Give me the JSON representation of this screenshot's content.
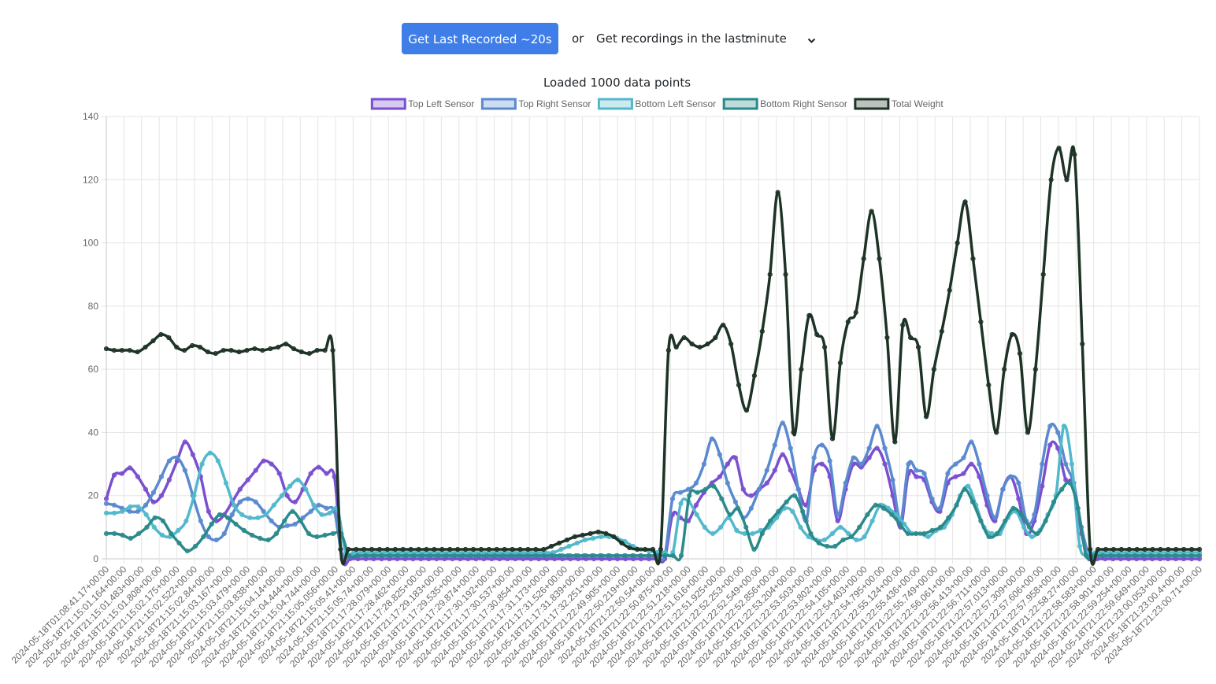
{
  "controls": {
    "fetch_button_label": "Get Last Recorded ~20s",
    "or_label": "or",
    "range_label": "Get recordings in the last:",
    "range_select_value": "minute"
  },
  "status": {
    "loaded_text": "Loaded 1000 data points"
  },
  "chart_data": {
    "type": "line",
    "ylim": [
      0,
      140
    ],
    "yticks": [
      0,
      20,
      40,
      60,
      80,
      100,
      120,
      140
    ],
    "grid": true,
    "legend_position": "top",
    "x_tick_labels": [
      "2024-05-18T01:08:41.17+00:00",
      "2024-05-18T21:15:01.164+00:00",
      "2024-05-18T21:15:01.483+00:00",
      "2024-05-18T21:15:01.808+00:00",
      "2024-05-18T21:15:02.175+00:00",
      "2024-05-18T21:15:02.522+00:00",
      "2024-05-18T21:15:02.84+00:00",
      "2024-05-18T21:15:03.167+00:00",
      "2024-05-18T21:15:03.479+00:00",
      "2024-05-18T21:15:03.838+00:00",
      "2024-05-18T21:15:04.14+00:00",
      "2024-05-18T21:15:04.444+00:00",
      "2024-05-18T21:15:04.744+00:00",
      "2024-05-18T21:15:05.056+00:00",
      "2024-05-18T21:15:05.41+00:00",
      "2024-05-18T21:15:05.74+00:00",
      "2024-05-18T21:17:28.079+00:00",
      "2024-05-18T21:17:28.462+00:00",
      "2024-05-18T21:17:28.825+00:00",
      "2024-05-18T21:17:29.183+00:00",
      "2024-05-18T21:17:29.535+00:00",
      "2024-05-18T21:17:29.874+00:00",
      "2024-05-18T21:17:30.192+00:00",
      "2024-05-18T21:17:30.537+00:00",
      "2024-05-18T21:17:30.854+00:00",
      "2024-05-18T21:17:31.173+00:00",
      "2024-05-18T21:17:31.526+00:00",
      "2024-05-18T21:17:31.839+00:00",
      "2024-05-18T21:17:32.251+00:00",
      "2024-05-18T21:22:49.905+00:00",
      "2024-05-18T21:22:50.219+00:00",
      "2024-05-18T21:22:50.54+00:00",
      "2024-05-18T21:22:50.875+00:00",
      "2024-05-18T21:22:51.218+00:00",
      "2024-05-18T21:22:51.616+00:00",
      "2024-05-18T21:22:51.925+00:00",
      "2024-05-18T21:22:52.253+00:00",
      "2024-05-18T21:22:52.549+00:00",
      "2024-05-18T21:22:52.856+00:00",
      "2024-05-18T21:22:53.204+00:00",
      "2024-05-18T21:22:53.503+00:00",
      "2024-05-18T21:22:53.802+00:00",
      "2024-05-18T21:22:54.105+00:00",
      "2024-05-18T21:22:54.403+00:00",
      "2024-05-18T21:22:54.795+00:00",
      "2024-05-18T21:22:55.124+00:00",
      "2024-05-18T21:22:55.436+00:00",
      "2024-05-18T21:22:55.749+00:00",
      "2024-05-18T21:22:56.061+00:00",
      "2024-05-18T21:22:56.413+00:00",
      "2024-05-18T21:22:56.711+00:00",
      "2024-05-18T21:22:57.013+00:00",
      "2024-05-18T21:22:57.309+00:00",
      "2024-05-18T21:22:57.606+00:00",
      "2024-05-18T21:22:57.958+00:00",
      "2024-05-18T21:22:58.27+00:00",
      "2024-05-18T21:22:58.583+00:00",
      "2024-05-18T21:22:58.901+00:00",
      "2024-05-18T21:22:59.254+00:00",
      "2024-05-18T21:22:59.649+00:00",
      "2024-05-18T21:23:00.053+00:00",
      "2024-05-18T21:23:00.4+00:00",
      "2024-05-18T21:23:00.71+00:00"
    ],
    "series": [
      {
        "name": "Top Left Sensor",
        "color": "#7a4fd0",
        "values": [
          19,
          26.5,
          27,
          28.8,
          26,
          22,
          18,
          20,
          25,
          31,
          37,
          33,
          26,
          15,
          12,
          14,
          18,
          22,
          25,
          28,
          31,
          30,
          27,
          20,
          18,
          22,
          27,
          29,
          27,
          26,
          0,
          0,
          0,
          0,
          0,
          0,
          0,
          0,
          0,
          0,
          0,
          0,
          0,
          0,
          0,
          0,
          0,
          0,
          0,
          0,
          0,
          0,
          0,
          0,
          0,
          0,
          0,
          0,
          0,
          0,
          0,
          0,
          0,
          0,
          0,
          0,
          0,
          0,
          0,
          0,
          0,
          0,
          14,
          13,
          12,
          17,
          21,
          24,
          26,
          30,
          32,
          22,
          20,
          22,
          24,
          28,
          33,
          28,
          22,
          17,
          28,
          30,
          26,
          12,
          22,
          30,
          29,
          32,
          35,
          30,
          20,
          10,
          27,
          26,
          25,
          18,
          15,
          24,
          26,
          27,
          30,
          26,
          17,
          12,
          22,
          26,
          19,
          8,
          12,
          23,
          36,
          35,
          25,
          24,
          8,
          0,
          0,
          0,
          0,
          0,
          0,
          0,
          0,
          0,
          0,
          0,
          0,
          0,
          0,
          0
        ]
      },
      {
        "name": "Top Right Sensor",
        "color": "#5a8ace",
        "values": [
          17.5,
          17,
          16,
          15,
          15,
          17,
          21,
          26,
          31,
          32,
          28,
          20,
          12,
          7,
          6,
          8,
          14,
          18,
          19,
          18,
          15,
          12,
          10,
          10.5,
          11,
          13,
          15,
          17,
          16,
          15,
          1,
          1,
          1,
          1,
          1,
          1,
          1,
          1,
          1,
          1,
          1,
          1,
          1,
          1,
          1,
          1,
          1,
          1,
          1,
          1,
          1,
          1,
          1,
          1,
          1,
          1,
          1,
          1,
          1,
          1,
          1,
          1,
          1,
          1,
          1,
          1,
          1,
          1,
          1,
          1,
          1,
          1,
          19,
          21,
          22,
          24,
          30,
          38,
          33,
          24,
          18,
          13,
          16,
          22,
          28,
          36,
          43,
          35,
          22,
          12,
          32,
          36,
          31,
          14,
          24,
          32,
          30,
          35,
          42,
          35,
          25,
          12,
          30,
          28,
          27,
          19,
          16,
          27,
          30,
          32,
          37,
          30,
          20,
          13,
          22,
          26,
          24,
          12,
          14,
          30,
          42,
          40,
          30,
          24,
          10,
          1,
          1,
          1,
          1,
          1,
          1,
          1,
          1,
          1,
          1,
          1,
          1,
          1,
          1,
          1
        ]
      },
      {
        "name": "Bottom Left Sensor",
        "color": "#52b8cc",
        "values": [
          14.5,
          14.5,
          15,
          16.5,
          16.5,
          14,
          10,
          7.5,
          7,
          9,
          12,
          20,
          30,
          33.5,
          31,
          24,
          17,
          14,
          13,
          13,
          14,
          17,
          20,
          23,
          25,
          22,
          17,
          14,
          14.5,
          15.5,
          2,
          2,
          2,
          2,
          2,
          2,
          2,
          2,
          2,
          2,
          2,
          2,
          2,
          2,
          2,
          2,
          2,
          2,
          2,
          2,
          2,
          2,
          2,
          2,
          2,
          2,
          2,
          3,
          4,
          5,
          6,
          6.5,
          7,
          7,
          6.5,
          5.5,
          4,
          3,
          2.5,
          2,
          2,
          2,
          17.5,
          18,
          14,
          10,
          8,
          10,
          13,
          9,
          8,
          8,
          9,
          10,
          13,
          16,
          15,
          10,
          7,
          6,
          6,
          8,
          10,
          8,
          6,
          7,
          12,
          17,
          16,
          14,
          11,
          8,
          8,
          7,
          9,
          10,
          14,
          20,
          23,
          17,
          10,
          8,
          8,
          13,
          15,
          10,
          7,
          9,
          14,
          20,
          42,
          30,
          4,
          2,
          2,
          2,
          2,
          2,
          2,
          2,
          2,
          2,
          2,
          2,
          2,
          2,
          2,
          2
        ]
      },
      {
        "name": "Bottom Right Sensor",
        "color": "#2a8a8a",
        "values": [
          8,
          8,
          7.5,
          6.5,
          8,
          10,
          13,
          12,
          8,
          5,
          2.5,
          4,
          7,
          11,
          14,
          13,
          11,
          9,
          7.5,
          6.5,
          6,
          8,
          12,
          15,
          12,
          8,
          7,
          7.5,
          8,
          8,
          1,
          1,
          1,
          1,
          1,
          1,
          1,
          1,
          1,
          1,
          1,
          1,
          1,
          1,
          1,
          1,
          1,
          1,
          1,
          1,
          1,
          1,
          1,
          1,
          1,
          1,
          1,
          1,
          1,
          1,
          1,
          1,
          1,
          1,
          1,
          1,
          1,
          1,
          1,
          1,
          1,
          1,
          20,
          21,
          22,
          23,
          19,
          14,
          16,
          10,
          3,
          8,
          12,
          15,
          18,
          20,
          15,
          8,
          5,
          4,
          4,
          6,
          7,
          10,
          14,
          17,
          16,
          14,
          11,
          8,
          8,
          8,
          9,
          10,
          13,
          17,
          22,
          18,
          12,
          7,
          8,
          12,
          16,
          14,
          10,
          8,
          12,
          18,
          22,
          24,
          16,
          1,
          1,
          1,
          1,
          1,
          1,
          1,
          1,
          1,
          1,
          1,
          1,
          1,
          1,
          1
        ]
      },
      {
        "name": "Total Weight",
        "color": "#1d3325",
        "values": [
          66.5,
          66,
          66,
          66,
          65.5,
          67,
          69,
          71,
          70,
          67,
          66,
          67.5,
          67,
          65.5,
          65,
          66,
          66,
          65.5,
          66,
          66.5,
          66,
          66.5,
          67,
          68,
          66.5,
          65.5,
          65,
          66,
          66,
          66,
          3,
          3,
          3,
          3,
          3,
          3,
          3,
          3,
          3,
          3,
          3,
          3,
          3,
          3,
          3,
          3,
          3,
          3,
          3,
          3,
          3,
          3,
          3,
          3,
          3,
          3,
          3,
          4,
          5,
          6,
          7,
          7.5,
          8,
          8.5,
          8,
          7,
          5,
          3.5,
          3,
          3,
          3,
          3,
          66,
          67,
          70,
          68,
          67,
          68,
          70,
          74,
          68,
          55,
          47,
          58,
          72,
          90,
          116,
          90,
          40,
          60,
          77,
          71,
          67,
          38,
          62,
          75,
          78,
          95,
          110,
          95,
          70,
          37,
          74,
          70,
          67,
          45,
          60,
          72,
          85,
          100,
          113,
          95,
          75,
          55,
          40,
          60,
          71,
          65,
          40,
          60,
          90,
          120,
          130,
          120,
          128,
          68,
          3,
          3,
          3,
          3,
          3,
          3,
          3,
          3,
          3,
          3,
          3,
          3,
          3,
          3,
          3
        ]
      }
    ]
  }
}
